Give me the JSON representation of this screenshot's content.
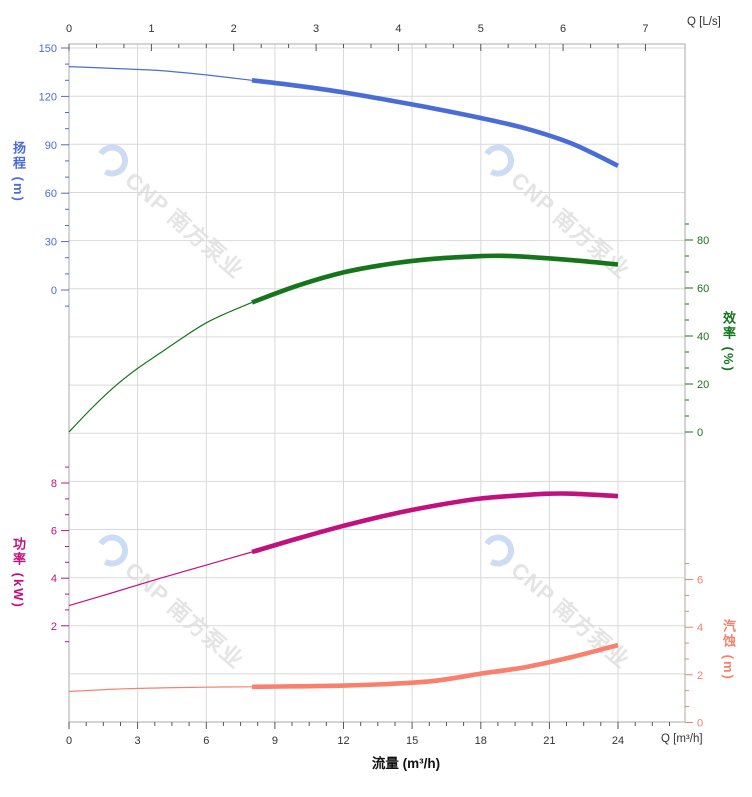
{
  "watermark": {
    "text": "CNP 南方泵业"
  },
  "chart_data": {
    "type": "line",
    "title": "",
    "grid": true,
    "legend": false,
    "highlight_flow_range_m3h": [
      8,
      24
    ],
    "x_axis_bottom": {
      "label": "Q [m³/h]",
      "title": "流量 (m³/h)",
      "unit": "m³/h",
      "ticks": [
        0,
        3,
        6,
        9,
        12,
        15,
        18,
        21,
        24
      ],
      "range": [
        0,
        26.9
      ]
    },
    "x_axis_top": {
      "label": "Q [L/s]",
      "unit": "L/s",
      "ticks": [
        0,
        1,
        2,
        3,
        4,
        5,
        6,
        7
      ]
    },
    "y_axes": [
      {
        "id": "head",
        "title": "扬程 (m)",
        "unit": "m",
        "side": "left",
        "color": "#4a6cd6",
        "ticks": [
          0,
          30,
          60,
          90,
          120,
          150
        ],
        "range": [
          0,
          150
        ]
      },
      {
        "id": "efficiency",
        "title": "效率 (%)",
        "unit": "%",
        "side": "right",
        "color": "#15751a",
        "ticks": [
          0,
          20,
          40,
          60,
          80
        ],
        "range": [
          0,
          80
        ]
      },
      {
        "id": "power",
        "title": "功率 (kW)",
        "unit": "kW",
        "side": "left",
        "color": "#c3107f",
        "ticks": [
          2,
          4,
          6,
          8
        ],
        "range": [
          2,
          8
        ]
      },
      {
        "id": "npsh",
        "title": "汽蚀 (m)",
        "unit": "m",
        "side": "right",
        "color": "#f8806d",
        "ticks": [
          0,
          2,
          4,
          6
        ],
        "range": [
          0,
          6
        ]
      }
    ],
    "series": [
      {
        "name": "head",
        "axis": "head",
        "color": "#4a6cd6",
        "points": [
          [
            0,
            138.5
          ],
          [
            2,
            137.3
          ],
          [
            4,
            136
          ],
          [
            6,
            133.3
          ],
          [
            8,
            130
          ],
          [
            10,
            126.6
          ],
          [
            12,
            122.5
          ],
          [
            14,
            117.6
          ],
          [
            16,
            112.4
          ],
          [
            18,
            106.6
          ],
          [
            20,
            100
          ],
          [
            22,
            90.6
          ],
          [
            24,
            77
          ]
        ]
      },
      {
        "name": "efficiency",
        "axis": "efficiency",
        "color": "#15751a",
        "points": [
          [
            0,
            0
          ],
          [
            1,
            10
          ],
          [
            2,
            19
          ],
          [
            3,
            26.5
          ],
          [
            4,
            33
          ],
          [
            5,
            39.5
          ],
          [
            6,
            45.5
          ],
          [
            7,
            50
          ],
          [
            8,
            54
          ],
          [
            10,
            61
          ],
          [
            12,
            66.5
          ],
          [
            14,
            70
          ],
          [
            16,
            72.2
          ],
          [
            18,
            73.3
          ],
          [
            19,
            73.4
          ],
          [
            20,
            73
          ],
          [
            22,
            71.6
          ],
          [
            24,
            69.8
          ]
        ]
      },
      {
        "name": "power",
        "axis": "power",
        "color": "#c3107f",
        "points": [
          [
            0,
            2.85
          ],
          [
            2,
            3.42
          ],
          [
            4,
            4.0
          ],
          [
            6,
            4.55
          ],
          [
            8,
            5.1
          ],
          [
            10,
            5.67
          ],
          [
            12,
            6.2
          ],
          [
            14,
            6.67
          ],
          [
            16,
            7.05
          ],
          [
            18,
            7.35
          ],
          [
            20,
            7.5
          ],
          [
            21,
            7.55
          ],
          [
            22,
            7.55
          ],
          [
            24,
            7.45
          ]
        ]
      },
      {
        "name": "npsh",
        "axis": "npsh",
        "color": "#f8806d",
        "points": [
          [
            0,
            1.3
          ],
          [
            2,
            1.4
          ],
          [
            4,
            1.45
          ],
          [
            6,
            1.48
          ],
          [
            8,
            1.5
          ],
          [
            10,
            1.52
          ],
          [
            12,
            1.55
          ],
          [
            14,
            1.62
          ],
          [
            16,
            1.75
          ],
          [
            18,
            2.05
          ],
          [
            20,
            2.33
          ],
          [
            22,
            2.75
          ],
          [
            24,
            3.25
          ]
        ]
      }
    ]
  }
}
